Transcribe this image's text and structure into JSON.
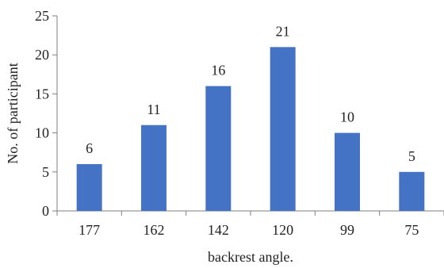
{
  "chart_data": {
    "type": "bar",
    "categories": [
      "177",
      "162",
      "142",
      "120",
      "99",
      "75"
    ],
    "values": [
      6,
      11,
      16,
      21,
      10,
      5
    ],
    "data_labels": [
      "6",
      "11",
      "16",
      "21",
      "10",
      "5"
    ],
    "title": "",
    "xlabel": "backrest angle.",
    "ylabel": "No. of participant",
    "ylim": [
      0,
      25
    ],
    "yticks": [
      0,
      5,
      10,
      15,
      20,
      25
    ],
    "grid": false,
    "legend": "none",
    "colors": {
      "bar": "#4472C4",
      "axis": "#7f7f7f",
      "text": "#222222"
    }
  }
}
